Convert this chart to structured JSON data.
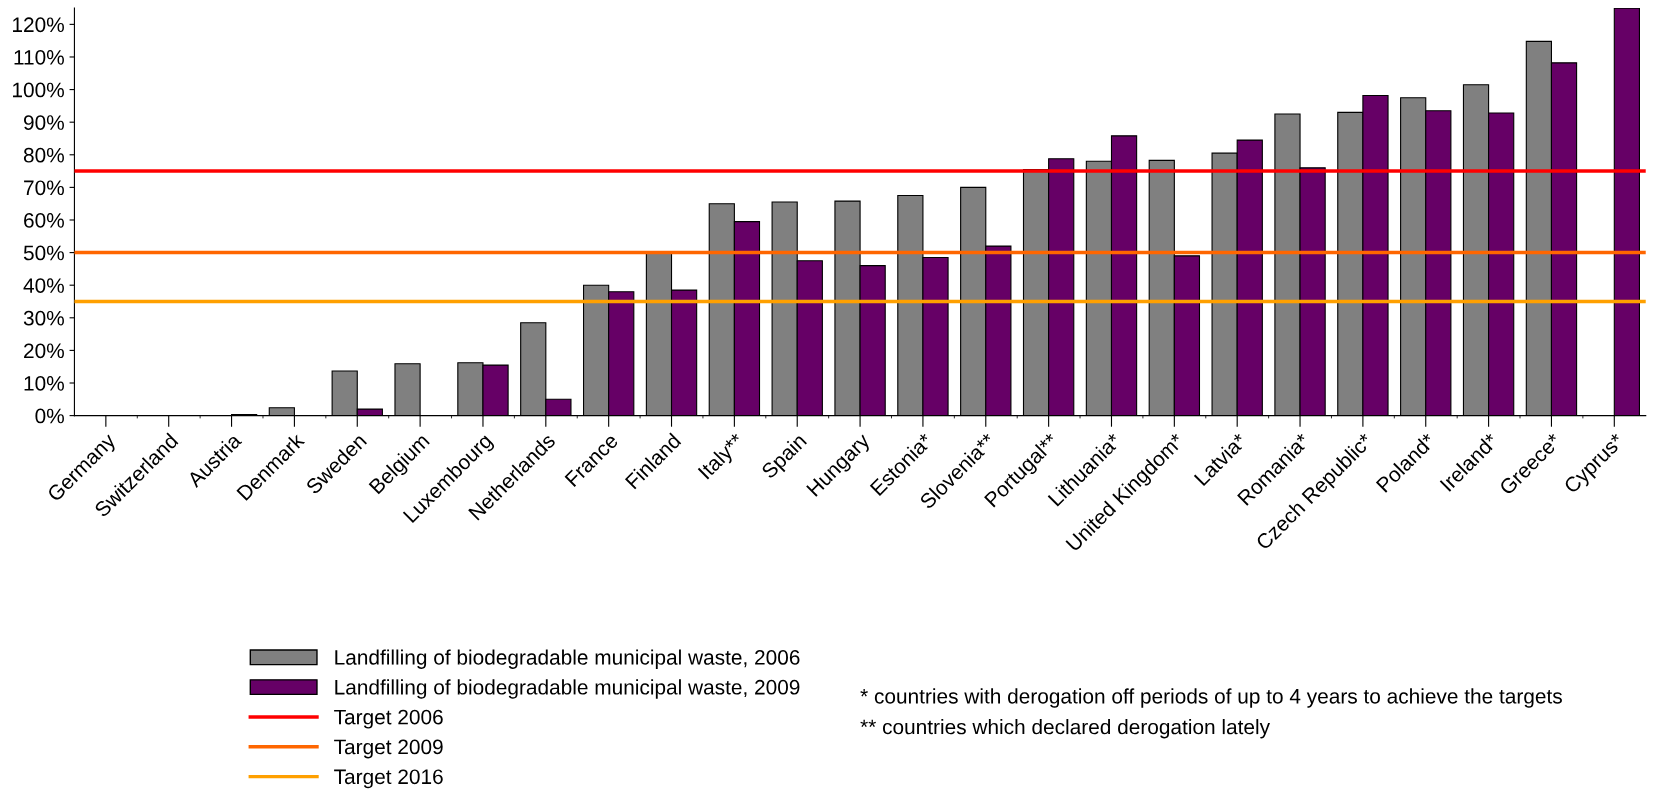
{
  "chart_data": {
    "type": "bar",
    "categories": [
      "Germany",
      "Switzerland",
      "Austria",
      "Denmark",
      "Sweden",
      "Belgium",
      "Luxembourg",
      "Netherlands",
      "France",
      "Finland",
      "Italy**",
      "Spain",
      "Hungary",
      "Estonia*",
      "Slovenia**",
      "Portugal**",
      "Lithuania*",
      "United Kingdom*",
      "Latvia*",
      "Romania*",
      "Czech Republic*",
      "Poland*",
      "Ireland*",
      "Greece*",
      "Cyprus*"
    ],
    "series": [
      {
        "name": "Landfilling of biodegradable municipal waste, 2006",
        "color": "#808080",
        "values": [
          null,
          null,
          null,
          2.4,
          13.7,
          15.9,
          16.2,
          28.5,
          40,
          50,
          65,
          65.5,
          65.8,
          67.5,
          70,
          75.5,
          78,
          78.3,
          80.5,
          92.5,
          93,
          97.5,
          101.5,
          114.8,
          null
        ]
      },
      {
        "name": "Landfilling of biodegradable municipal waste, 2009",
        "color": "#660066",
        "values": [
          null,
          null,
          0.3,
          null,
          2,
          null,
          15.5,
          5,
          38,
          38.5,
          59.5,
          47.5,
          46,
          48.5,
          52,
          78.8,
          85.8,
          49,
          84.5,
          76,
          98.2,
          93.5,
          92.8,
          108.2,
          125
        ]
      }
    ],
    "ref_lines": [
      {
        "axis": "y",
        "value": 75,
        "label": "Target 2006",
        "color": "#ff0000"
      },
      {
        "axis": "y",
        "value": 50,
        "label": "Target 2009",
        "color": "#ff6600"
      },
      {
        "axis": "y",
        "value": 35,
        "label": "Target 2016",
        "color": "#ffa000"
      }
    ],
    "ylim": [
      0,
      125
    ],
    "yticks": [
      {
        "value": 0,
        "label": "0%"
      },
      {
        "value": 10,
        "label": "10%"
      },
      {
        "value": 20,
        "label": "20%"
      },
      {
        "value": 30,
        "label": "30%"
      },
      {
        "value": 40,
        "label": "40%"
      },
      {
        "value": 50,
        "label": "50%"
      },
      {
        "value": 60,
        "label": "60%"
      },
      {
        "value": 70,
        "label": "70%"
      },
      {
        "value": 80,
        "label": "80%"
      },
      {
        "value": 90,
        "label": "90%"
      },
      {
        "value": 100,
        "label": "100%"
      },
      {
        "value": 110,
        "label": "110%"
      },
      {
        "value": 120,
        "label": "120%"
      }
    ],
    "grid": false,
    "legend": "bottom",
    "annotations": [
      "* countries with derogation off periods of up to 4 years to achieve the targets",
      "** countries which declared derogation lately"
    ]
  }
}
